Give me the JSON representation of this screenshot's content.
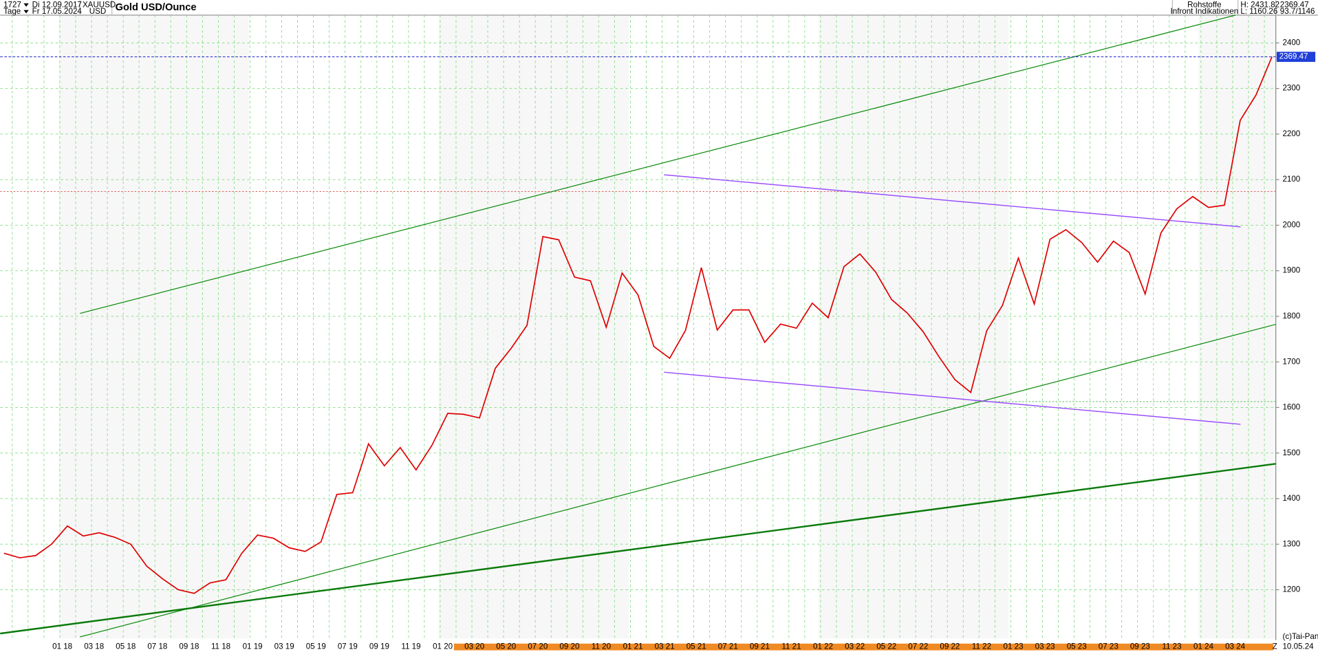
{
  "header": {
    "count": "1727",
    "start": "Di 12.09.2017",
    "symbol": "XAUUSD",
    "currency": "USD",
    "period": "Tage",
    "end": "Fr 17.05.2024",
    "group": "Rohstoffe",
    "source": "Infront Indikationen",
    "high": "H: 2431.82",
    "low": "L: 1160.26",
    "last": "2369.47",
    "info": "93.7/1146",
    "copyright": "(c)Tai-Pan",
    "zoom": "Z",
    "last_date": "10.05.24"
  },
  "chart_data": {
    "type": "line",
    "title": "Gold USD/Ounce",
    "categories": [
      null,
      null,
      null,
      null,
      "01 18",
      null,
      "03 18",
      null,
      "05 18",
      null,
      "07 18",
      null,
      "09 18",
      null,
      "11 18",
      null,
      "01 19",
      null,
      "03 19",
      null,
      "05 19",
      null,
      "07 19",
      null,
      "09 19",
      null,
      "11 19",
      null,
      "01 20",
      null,
      "03 20",
      null,
      "05 20",
      null,
      "07 20",
      null,
      "09 20",
      null,
      "11 20",
      null,
      "01 21",
      null,
      "03 21",
      null,
      "05 21",
      null,
      "07 21",
      null,
      "09 21",
      null,
      "11 21",
      null,
      "01 22",
      null,
      "03 22",
      null,
      "05 22",
      null,
      "07 22",
      null,
      "09 22",
      null,
      "11 22",
      null,
      "01 23",
      null,
      "03 23",
      null,
      "05 23",
      null,
      "07 23",
      null,
      "09 23",
      null,
      "11 23",
      null,
      "01 24",
      null,
      "03 24",
      null,
      null
    ],
    "series": [
      {
        "name": "XAUUSD",
        "color": "#e00000",
        "values": [
          1280,
          1270,
          1275,
          1300,
          1340,
          1318,
          1325,
          1315,
          1300,
          1252,
          1224,
          1200,
          1192,
          1215,
          1222,
          1280,
          1320,
          1313,
          1292,
          1284,
          1305,
          1409,
          1413,
          1520,
          1472,
          1512,
          1463,
          1517,
          1587,
          1585,
          1577,
          1686,
          1730,
          1780,
          1975,
          1968,
          1886,
          1878,
          1776,
          1895,
          1847,
          1734,
          1708,
          1769,
          1907,
          1770,
          1814,
          1814,
          1743,
          1783,
          1774,
          1829,
          1797,
          1909,
          1937,
          1897,
          1837,
          1807,
          1766,
          1711,
          1661,
          1633,
          1768,
          1824,
          1928,
          1827,
          1969,
          1990,
          1962,
          1919,
          1965,
          1940,
          1849,
          1983,
          2036,
          2063,
          2039,
          2044,
          2230,
          2286,
          2369.47
        ]
      }
    ],
    "ylim": [
      1115,
      2461
    ],
    "yticks": [
      1200,
      1300,
      1400,
      1500,
      1600,
      1700,
      1800,
      1900,
      2000,
      2100,
      2200,
      2300,
      2400
    ],
    "grid": true
  }
}
